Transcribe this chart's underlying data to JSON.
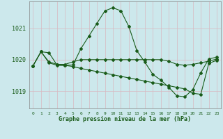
{
  "title": "Graphe pression niveau de la mer (hPa)",
  "background_color": "#cce8ec",
  "grid_color": "#b0d8dc",
  "line_color": "#1a5c1a",
  "xlim": [
    -0.5,
    23.5
  ],
  "ylim": [
    1018.45,
    1021.85
  ],
  "yticks": [
    1019,
    1020,
    1021
  ],
  "xticks": [
    0,
    1,
    2,
    3,
    4,
    5,
    6,
    7,
    8,
    9,
    10,
    11,
    12,
    13,
    14,
    15,
    16,
    17,
    18,
    19,
    20,
    21,
    22,
    23
  ],
  "series1": [
    1019.8,
    1020.25,
    1020.22,
    1019.83,
    1019.82,
    1019.83,
    1020.35,
    1020.75,
    1021.15,
    1021.55,
    1021.65,
    1021.55,
    1021.05,
    1020.28,
    1019.92,
    1019.53,
    1019.35,
    1019.12,
    1018.85,
    1018.82,
    1019.05,
    1019.58,
    1020.02,
    1020.08
  ],
  "series2": [
    1019.8,
    1020.25,
    1019.93,
    1019.85,
    1019.85,
    1019.93,
    1020.0,
    1020.0,
    1020.0,
    1020.0,
    1020.0,
    1020.0,
    1020.0,
    1020.0,
    1020.0,
    1020.0,
    1020.0,
    1019.95,
    1019.85,
    1019.82,
    1019.85,
    1019.9,
    1019.95,
    1020.02
  ],
  "series3": [
    1019.8,
    1020.25,
    1019.9,
    1019.82,
    1019.82,
    1019.78,
    1019.72,
    1019.67,
    1019.62,
    1019.57,
    1019.52,
    1019.47,
    1019.42,
    1019.37,
    1019.32,
    1019.27,
    1019.22,
    1019.17,
    1019.12,
    1019.07,
    1018.93,
    1018.9,
    1019.88,
    1019.98
  ]
}
